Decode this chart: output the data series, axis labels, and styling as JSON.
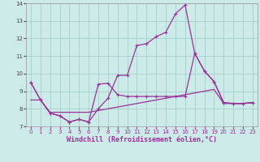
{
  "xlabel": "Windchill (Refroidissement éolien,°C)",
  "bg_color": "#cceae7",
  "grid_color": "#aad4d0",
  "line_color": "#993399",
  "xlim": [
    -0.5,
    23.5
  ],
  "ylim": [
    7,
    14
  ],
  "xticks": [
    0,
    1,
    2,
    3,
    4,
    5,
    6,
    7,
    8,
    9,
    10,
    11,
    12,
    13,
    14,
    15,
    16,
    17,
    18,
    19,
    20,
    21,
    22,
    23
  ],
  "yticks": [
    7,
    8,
    9,
    10,
    11,
    12,
    13,
    14
  ],
  "lineA_x": [
    0,
    1,
    2,
    3,
    4,
    5,
    6,
    7,
    8,
    9,
    10,
    11,
    12,
    13,
    14,
    15,
    16,
    17,
    18,
    19,
    20,
    21,
    22,
    23
  ],
  "lineA_y": [
    9.5,
    8.5,
    7.75,
    7.6,
    7.25,
    7.4,
    7.25,
    8.0,
    8.6,
    9.9,
    9.9,
    11.6,
    11.7,
    12.1,
    12.35,
    13.4,
    13.9,
    11.15,
    10.15,
    9.55,
    8.35,
    8.3,
    8.3,
    8.35
  ],
  "lineB_x": [
    0,
    1,
    2,
    3,
    4,
    5,
    6,
    7,
    8,
    9,
    10,
    11,
    12,
    13,
    14,
    15,
    16,
    17,
    18,
    19,
    20,
    21,
    22,
    23
  ],
  "lineB_y": [
    9.5,
    8.5,
    7.75,
    7.6,
    7.25,
    7.4,
    7.25,
    9.4,
    9.45,
    8.8,
    8.7,
    8.7,
    8.7,
    8.7,
    8.7,
    8.7,
    8.7,
    11.15,
    10.15,
    9.55,
    8.35,
    8.3,
    8.3,
    8.35
  ],
  "lineC_x": [
    0,
    1,
    2,
    3,
    4,
    5,
    6,
    7,
    8,
    9,
    10,
    11,
    12,
    13,
    14,
    15,
    16,
    17,
    18,
    19,
    20,
    21,
    22,
    23
  ],
  "lineC_y": [
    8.5,
    8.5,
    7.8,
    7.8,
    7.8,
    7.8,
    7.8,
    7.9,
    8.0,
    8.1,
    8.2,
    8.3,
    8.4,
    8.5,
    8.6,
    8.7,
    8.8,
    8.9,
    9.0,
    9.1,
    8.3,
    8.3,
    8.3,
    8.35
  ]
}
